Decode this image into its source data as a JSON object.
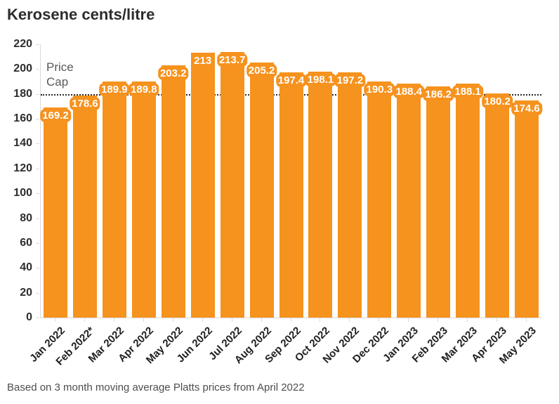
{
  "chart_data": {
    "type": "bar",
    "title": "Kerosene cents/litre",
    "footnote": "Based on 3 month moving average Platts prices from April 2022",
    "categories": [
      "Jan 2022",
      "Feb 2022*",
      "Mar 2022",
      "Apr 2022",
      "May 2022",
      "Jun 2022",
      "Jul 2022",
      "Aug 2022",
      "Sep 2022",
      "Oct 2022",
      "Nov 2022",
      "Dec 2022",
      "Jan 2023",
      "Feb 2023",
      "Mar 2023",
      "Apr 2023",
      "May 2023"
    ],
    "values": [
      169.2,
      178.6,
      189.9,
      189.8,
      203.2,
      213,
      213.7,
      205.2,
      197.4,
      198.1,
      197.2,
      190.3,
      188.4,
      186.2,
      188.1,
      180.2,
      174.6
    ],
    "value_labels": [
      "169.2",
      "178.6",
      "189.9",
      "189.8",
      "203.2",
      "213",
      "213.7",
      "205.2",
      "197.4",
      "198.1",
      "197.2",
      "190.3",
      "188.4",
      "186.2",
      "188.1",
      "180.2",
      "174.6"
    ],
    "xlabel": "",
    "ylabel": "",
    "ylim": [
      0,
      220
    ],
    "ytick_step": 20,
    "grid": false,
    "legend": "none",
    "price_cap": {
      "label": "Price Cap",
      "value": 180
    },
    "colors": {
      "bar": "#f6921e",
      "value_label_text": "#ffffff",
      "title_text": "#2d2d2d",
      "axis_text": "#2d2d2d",
      "price_cap_line": "#2a2a2a",
      "price_cap_text": "#58595b",
      "footnote_text": "#4d4d4d"
    }
  }
}
